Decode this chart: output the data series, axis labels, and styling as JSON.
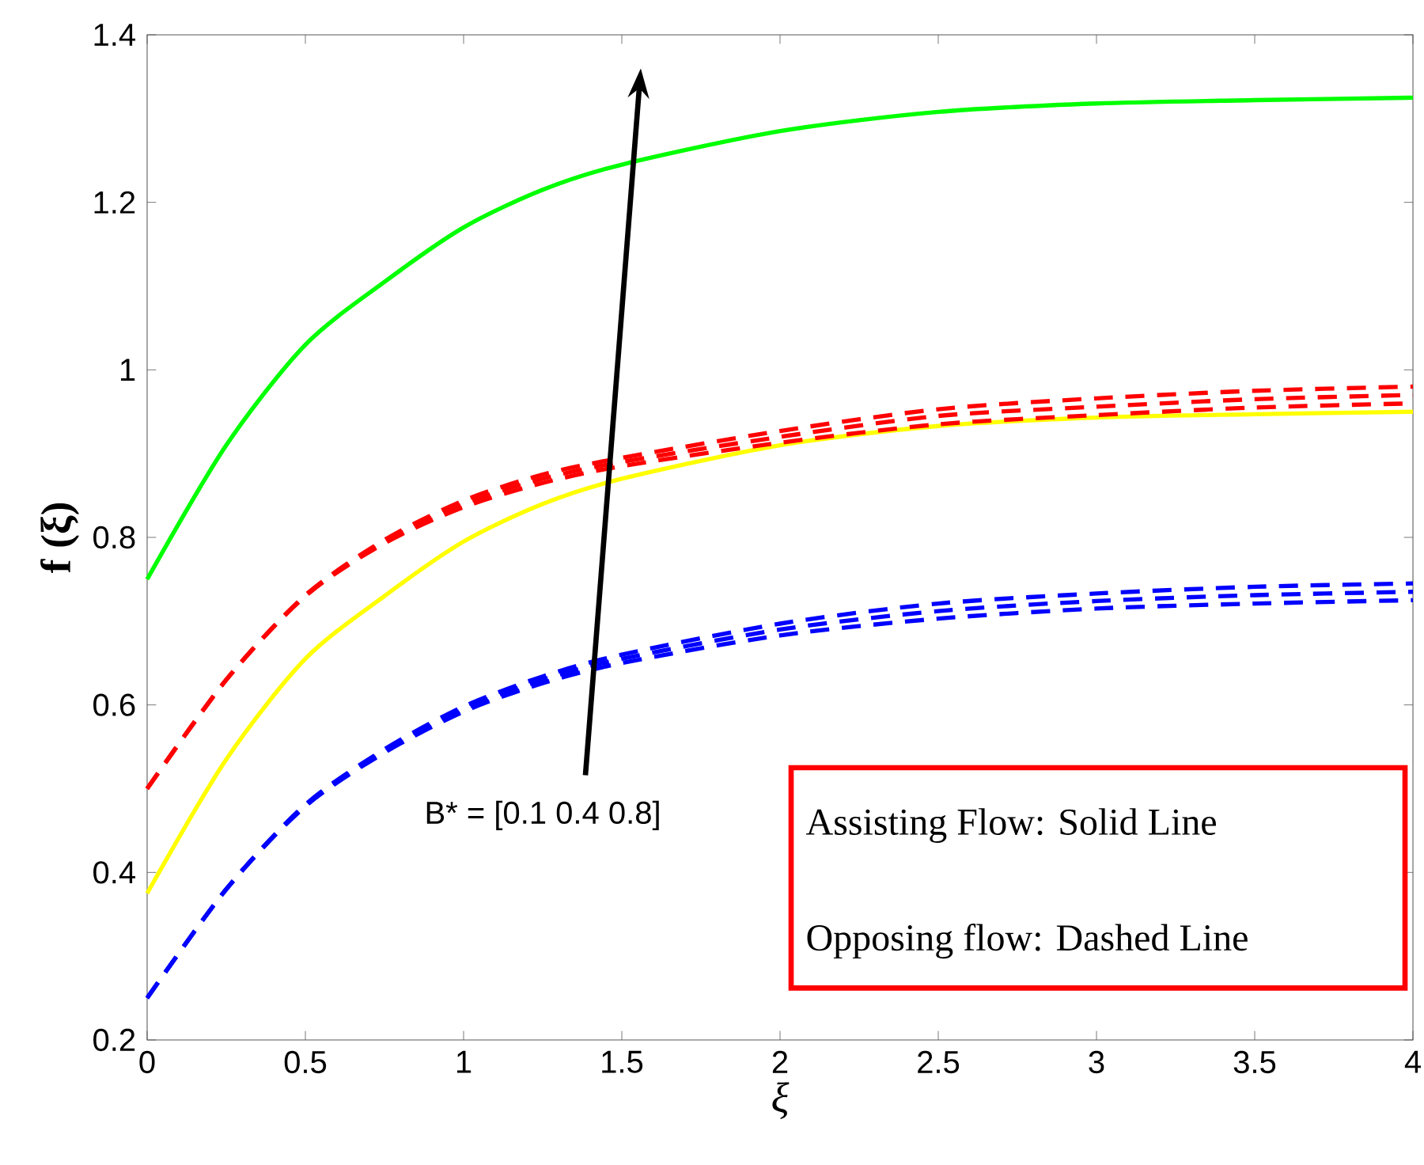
{
  "chart_data": {
    "type": "line",
    "xlabel": "ξ",
    "ylabel": "**f**  (ξ)",
    "x": [
      0,
      0.25,
      0.5,
      0.75,
      1,
      1.25,
      1.5,
      2,
      2.5,
      3,
      3.5,
      4
    ],
    "series": [
      {
        "color": "#00ff00",
        "line_style": "solid",
        "values": [
          0.75,
          0.91,
          1.03,
          1.105,
          1.17,
          1.215,
          1.245,
          1.285,
          1.308,
          1.318,
          1.322,
          1.325
        ]
      },
      {
        "color": "#ffff00",
        "line_style": "solid",
        "values": [
          0.375,
          0.535,
          0.655,
          0.73,
          0.795,
          0.84,
          0.87,
          0.91,
          0.933,
          0.943,
          0.947,
          0.95
        ]
      },
      {
        "color": "#ff0000",
        "line_style": "dashed",
        "values": [
          0.5,
          0.63,
          0.73,
          0.793,
          0.836,
          0.865,
          0.885,
          0.913,
          0.935,
          0.946,
          0.955,
          0.96
        ]
      },
      {
        "color": "#ff0000",
        "line_style": "dashed",
        "values": [
          0.5,
          0.63,
          0.73,
          0.795,
          0.84,
          0.87,
          0.89,
          0.92,
          0.945,
          0.956,
          0.965,
          0.97
        ]
      },
      {
        "color": "#ff0000",
        "line_style": "dashed",
        "values": [
          0.5,
          0.63,
          0.731,
          0.797,
          0.844,
          0.875,
          0.895,
          0.927,
          0.953,
          0.966,
          0.975,
          0.98
        ]
      },
      {
        "color": "#0000ff",
        "line_style": "dashed",
        "values": [
          0.25,
          0.38,
          0.479,
          0.543,
          0.592,
          0.626,
          0.65,
          0.683,
          0.703,
          0.715,
          0.721,
          0.725
        ]
      },
      {
        "color": "#0000ff",
        "line_style": "dashed",
        "values": [
          0.25,
          0.38,
          0.48,
          0.545,
          0.595,
          0.63,
          0.655,
          0.69,
          0.712,
          0.724,
          0.731,
          0.735
        ]
      },
      {
        "color": "#0000ff",
        "line_style": "dashed",
        "values": [
          0.25,
          0.38,
          0.481,
          0.547,
          0.598,
          0.634,
          0.66,
          0.697,
          0.721,
          0.733,
          0.741,
          0.745
        ]
      }
    ],
    "xlim": [
      0,
      4
    ],
    "ylim": [
      0.2,
      1.4
    ],
    "xticks": [
      0,
      0.5,
      1,
      1.5,
      2,
      2.5,
      3,
      3.5,
      4
    ],
    "yticks": [
      0.2,
      0.4,
      0.6,
      0.8,
      1,
      1.2,
      1.4
    ],
    "annotations": [
      "B* = [0.1  0.4  0.8]",
      "Assisting Flow:  Solid Line",
      "Opposing flow: Dashed Line"
    ]
  }
}
